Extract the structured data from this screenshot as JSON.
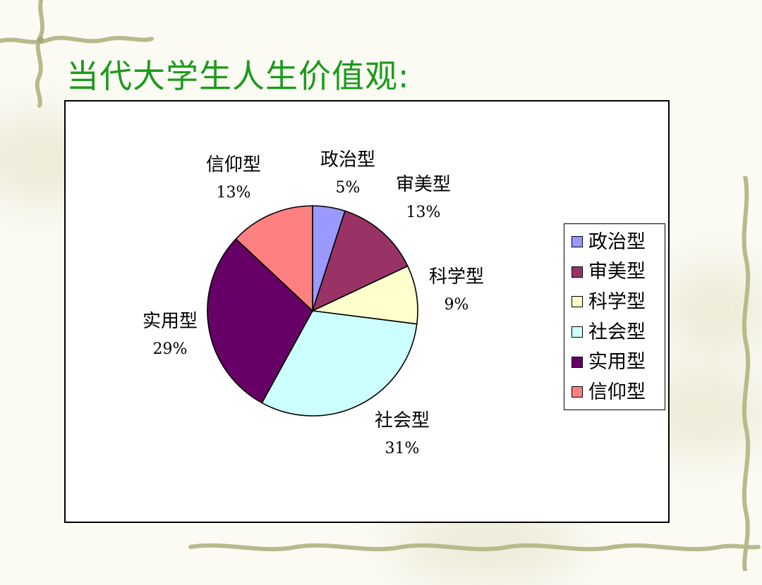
{
  "slide": {
    "title": "当代大学生人生价值观:"
  },
  "chart_data": {
    "type": "pie",
    "categories": [
      "政治型",
      "审美型",
      "科学型",
      "社会型",
      "实用型",
      "信仰型"
    ],
    "values": [
      5,
      13,
      9,
      31,
      29,
      13
    ],
    "value_labels": [
      "5%",
      "13%",
      "9%",
      "31%",
      "29%",
      "13%"
    ],
    "colors": [
      "#9999ff",
      "#993366",
      "#ffffcc",
      "#ccffff",
      "#660066",
      "#ff8080"
    ],
    "legend": "right",
    "start_angle": "12 o'clock, clockwise"
  }
}
